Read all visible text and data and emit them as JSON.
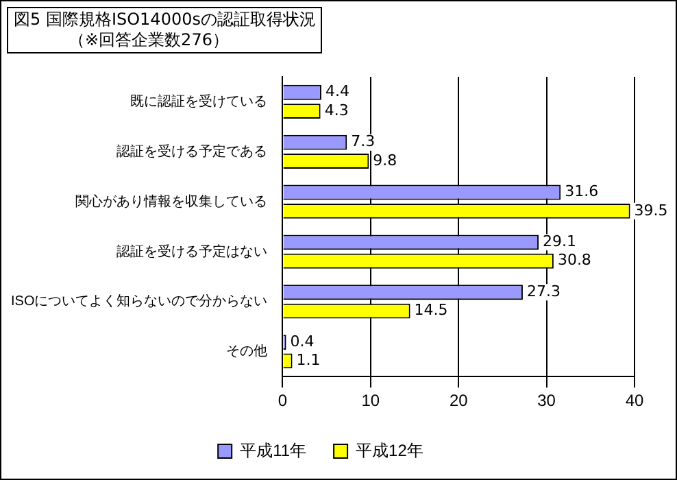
{
  "chart_data": {
    "type": "bar",
    "orientation": "horizontal",
    "title": "図5 国際規格ISO14000sの認証取得状況",
    "subtitle": "（※回答企業数276）",
    "categories": [
      "既に認証を受けている",
      "認証を受ける予定である",
      "関心があり情報を収集している",
      "認証を受ける予定はない",
      "ISOについてよく知らないので分からない",
      "その他"
    ],
    "series": [
      {
        "name": "平成11年",
        "color": "#9999ff",
        "values": [
          4.4,
          7.3,
          31.6,
          29.1,
          27.3,
          0.4
        ]
      },
      {
        "name": "平成12年",
        "color": "#ffff00",
        "values": [
          4.3,
          9.8,
          39.5,
          30.8,
          14.5,
          1.1
        ]
      }
    ],
    "xlim": [
      0,
      40
    ],
    "xticks": [
      0,
      10,
      20,
      30,
      40
    ],
    "grid": "x",
    "legend": "bottom",
    "data_labels": true
  }
}
